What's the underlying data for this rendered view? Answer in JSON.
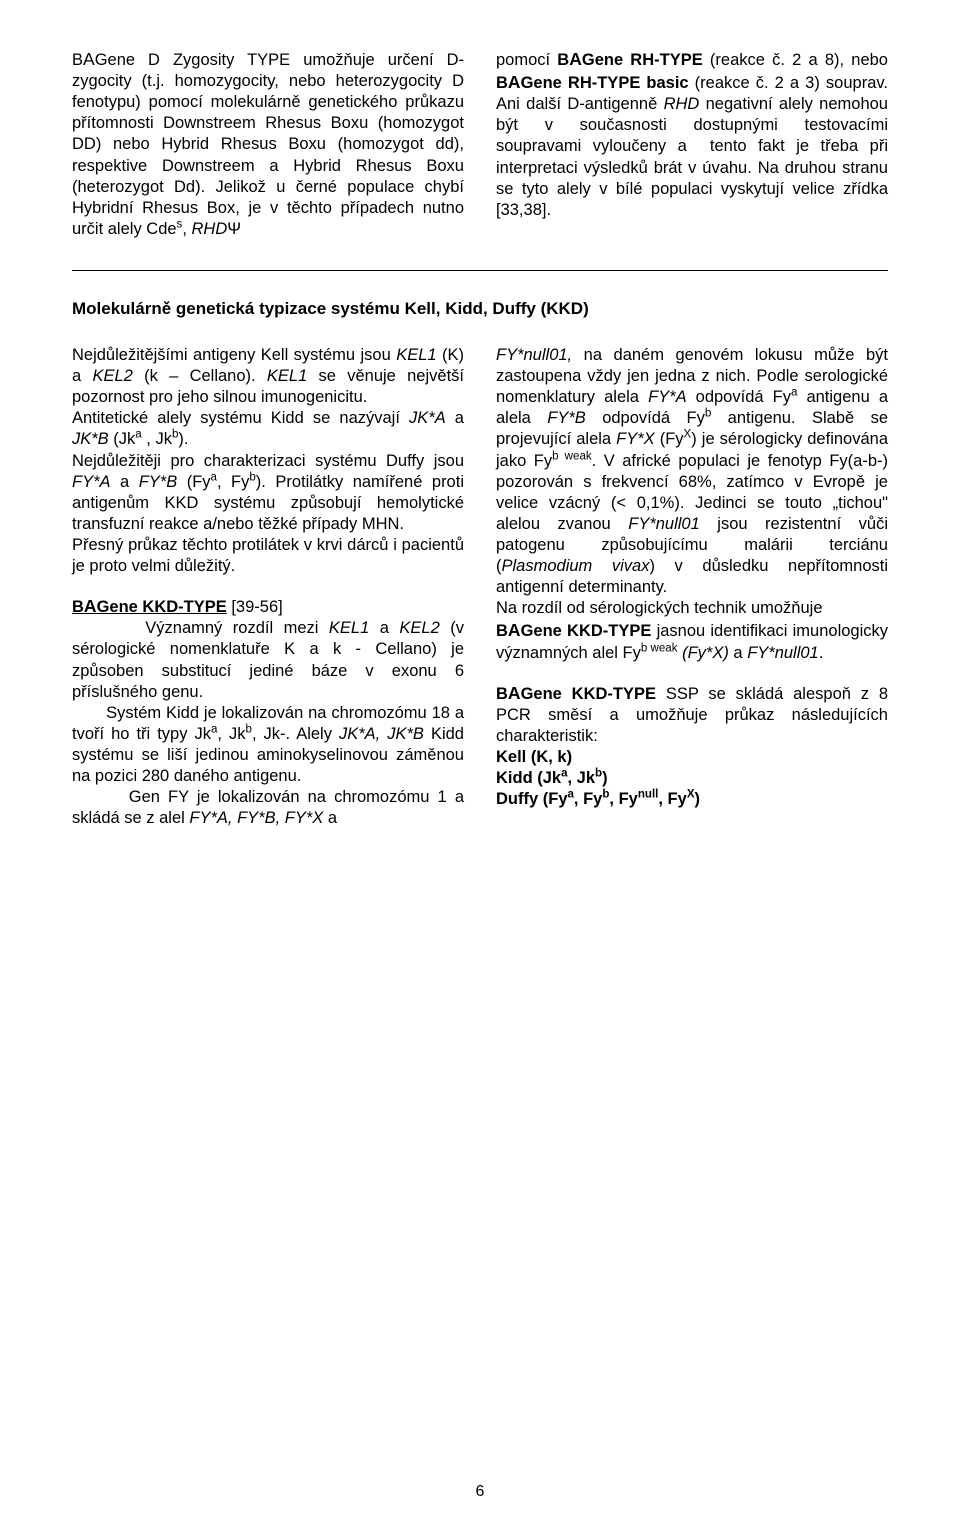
{
  "topLeft": {
    "html": "B<span class='biga'>A</span>Gene D Zygosity TYPE umožňuje určení D-zygocity (t.j. homozygocity, nebo heterozygocity D fenotypu) pomocí molekulárně genetického průkazu přítomnosti Downstreem Rhesus Boxu (homozygot DD) nebo Hybrid Rhesus Boxu (homozygot dd), respektive Downstreem a Hybrid Rhesus Boxu (heterozygot Dd). Jelikož u černé populace chybí Hybridní Rhesus Box, je v&nbsp;těchto případech nutno určit alely Cde<sup>s</sup>, <i>RHD</i>Ψ"
  },
  "topRight": {
    "html": "pomocí <b>B<span class='biga'>A</span>Gene RH-TYPE</b> (reakce č. 2 a 8), nebo <b>B<span class='biga'>A</span>Gene RH-TYPE basic</b> (reakce č. 2 a 3) souprav. Ani další D-antigenně <i>RHD</i> negativní alely nemohou být v&nbsp;současnosti dostupnými testovacími soupravami vyloučeny a&nbsp; tento fakt je třeba při interpretaci výsledků brát v&nbsp;úvahu. Na druhou stranu se tyto alely v&nbsp;bílé populaci vyskytují velice zřídka [33,38]."
  },
  "sectionTitle": "Molekulárně genetická typizace systému Kell, Kidd, Duffy (KKD)",
  "leftCol": {
    "p1": "Nejdůležitějšími antigeny Kell systému jsou <i>KEL1</i> (K) a <i>KEL2</i> (k – Cellano). <i>KEL1</i> se věnuje největší pozornost pro jeho silnou imunogenicitu.",
    "p2": "Antitetické alely systému Kidd se nazývají <i>JK*A</i> a <i>JK*B</i> (Jk<sup>a</sup> , Jk<sup>b</sup>).",
    "p3": "Nejdůležitěji pro charakterizaci systému Duffy jsou <i>FY*A</i> a <i>FY*B</i> (Fy<sup>a</sup>, Fy<sup>b</sup>). Protilátky namířené proti antigenům KKD systému způsobují hemolytické transfuzní reakce a/nebo těžké případy MHN.",
    "p4": "Přesný průkaz těchto protilátek v krvi dárců i pacientů je proto velmi důležitý.",
    "p5": "<b><span class='under'>B<span class='biga'>A</span>Gene KKD-TYPE</span></b> [39-56]",
    "p6": "&nbsp;&nbsp;&nbsp;&nbsp;&nbsp;&nbsp;&nbsp;Významný rozdíl mezi <i>KEL1</i> a <i>KEL2</i> (v sérologické nomenklatuře K a k - Cellano) je způsoben substitucí jediné báze v exonu 6 příslušného genu.",
    "p7": "&nbsp;&nbsp;&nbsp;&nbsp;&nbsp;&nbsp;&nbsp;Systém Kidd je lokalizován na chromozómu 18 a tvoří ho tři typy Jk<sup>a</sup>, Jk<sup>b</sup>, Jk-. Alely <i>JK*A, JK*B</i> Kidd systému se liší jedinou aminokyselinovou záměnou na pozici 280 daného antigenu.",
    "p8": "&nbsp;&nbsp;&nbsp;&nbsp;&nbsp;&nbsp;&nbsp;Gen FY je lokalizován na chromozómu 1 a skládá se z&nbsp;alel <i>FY*A, FY*B, FY*X</i> a"
  },
  "rightCol": {
    "p1": "<i>FY*null01,</i> na daném genovém lokusu může být zastoupena vždy jen jedna z&nbsp;nich. Podle serologické nomenklatury alela <i>FY*A</i> odpovídá Fy<sup>a</sup> antigenu a alela <i>FY*B</i> odpovídá Fy<sup>b</sup> antigenu. Slabě se projevující alela <i>FY*X</i> (Fy<sup>X</sup>) je sérologicky definována jako Fy<sup>b weak</sup>. V&nbsp;africké populaci je fenotyp Fy(a-b-) pozorován s&nbsp;frekvencí 68%, zatímco v&nbsp;Evropě je velice vzácný (&lt; 0,1%). Jedinci se touto „tichou\" alelou zvanou <i>FY*null01</i> jsou rezistentní vůči patogenu způsobujícímu malárii terciánu (<i>Plasmodium vivax</i>) v&nbsp;důsledku nepřítomnosti antigenní determinanty.",
    "p2": "Na rozdíl od sérologických technik umožňuje",
    "p3": "<b>B<span class='biga'>A</span>Gene KKD-TYPE</b> jasnou identifikaci imunologicky významných alel Fy<sup>b weak</sup> <i>(Fy*X)</i> a <i>FY*null01</i>.",
    "p4": "<b>B<span class='biga'>A</span>Gene KKD-TYPE</b> SSP se skládá alespoň z&nbsp;8 PCR směsí a umožňuje průkaz následujících charakteristik:",
    "p5": "<b>Kell (K, k)</b>",
    "p6": "<b>Kidd (Jk<sup>a</sup>, Jk<sup>b</sup>)</b>",
    "p7": "<b>Duffy (Fy<sup>a</sup>, Fy<sup>b</sup>, Fy<sup>null</sup>, Fy<sup>X</sup>)</b>"
  },
  "pageNumber": "6"
}
